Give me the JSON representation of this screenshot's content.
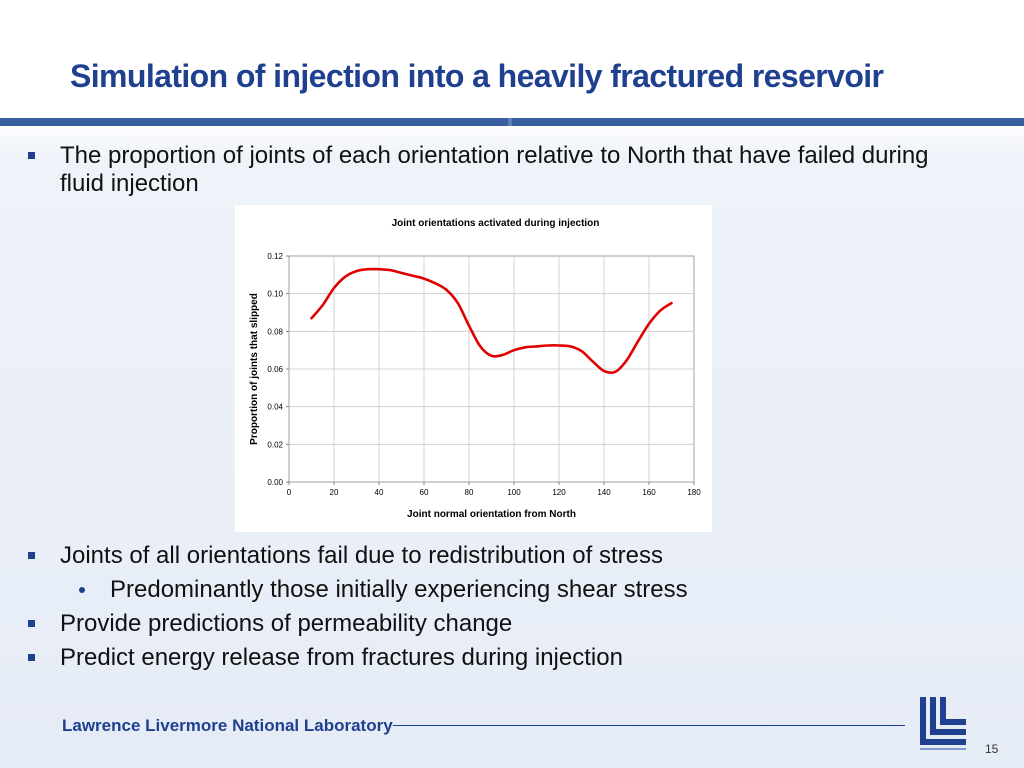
{
  "slide": {
    "title": "Simulation of injection into a heavily fractured reservoir",
    "bullets_top": [
      {
        "text": "The proportion of joints of each orientation relative to North that have failed during fluid injection"
      }
    ],
    "bullets_bottom": [
      {
        "text": "Joints of all orientations fail due to redistribution of stress",
        "sub": [
          "Predominantly those initially experiencing shear stress"
        ]
      },
      {
        "text": "Provide predictions of permeability change"
      },
      {
        "text": "Predict energy release from fractures during injection"
      }
    ]
  },
  "footer": {
    "lab_name": "Lawrence Livermore National Laboratory",
    "page_number": "15",
    "logo_icon": "llnl-logo-icon"
  },
  "colors": {
    "title": "#1f3f8f",
    "rule": "#3a5f9e",
    "curve": "#e00000"
  },
  "chart_data": {
    "type": "line",
    "title": "Joint orientations activated during injection",
    "xlabel": "Joint normal orientation from North",
    "ylabel": "Proportion of joints that slipped",
    "xlim": [
      0,
      180
    ],
    "ylim": [
      0,
      0.12
    ],
    "x_ticks": [
      "0",
      "20",
      "40",
      "60",
      "80",
      "100",
      "120",
      "140",
      "160",
      "180"
    ],
    "y_ticks": [
      "0.00",
      "0.02",
      "0.04",
      "0.06",
      "0.08",
      "0.10",
      "0.12"
    ],
    "grid": true,
    "legend": "none",
    "series": [
      {
        "x": [
          10,
          15,
          20,
          25,
          30,
          35,
          40,
          45,
          50,
          55,
          60,
          65,
          70,
          75,
          80,
          85,
          90,
          95,
          100,
          105,
          110,
          115,
          120,
          125,
          130,
          135,
          140,
          145,
          150,
          155,
          160,
          165,
          170
        ],
        "y": [
          0.087,
          0.094,
          0.103,
          0.109,
          0.112,
          0.113,
          0.113,
          0.1125,
          0.111,
          0.1095,
          0.108,
          0.1055,
          0.102,
          0.095,
          0.083,
          0.072,
          0.067,
          0.0675,
          0.07,
          0.0715,
          0.072,
          0.0725,
          0.0725,
          0.072,
          0.0695,
          0.064,
          0.059,
          0.0585,
          0.0645,
          0.0745,
          0.084,
          0.091,
          0.095
        ]
      }
    ]
  }
}
